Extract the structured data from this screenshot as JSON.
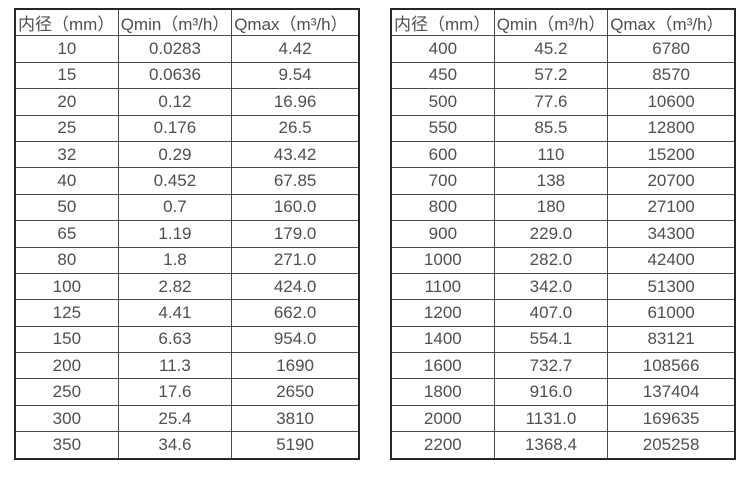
{
  "colors": {
    "background": "#ffffff",
    "border_outer": "#262626",
    "border_inner": "#4a4a4a",
    "text": "#4f4f4f"
  },
  "tables": [
    {
      "name": "flow-table-small-diameters",
      "headers": [
        "内径（mm）",
        "Qmin（m³/h）",
        "Qmax（m³/h）"
      ],
      "rows": [
        [
          "10",
          "0.0283",
          "4.42"
        ],
        [
          "15",
          "0.0636",
          "9.54"
        ],
        [
          "20",
          "0.12",
          "16.96"
        ],
        [
          "25",
          "0.176",
          "26.5"
        ],
        [
          "32",
          "0.29",
          "43.42"
        ],
        [
          "40",
          "0.452",
          "67.85"
        ],
        [
          "50",
          "0.7",
          "160.0"
        ],
        [
          "65",
          "1.19",
          "179.0"
        ],
        [
          "80",
          "1.8",
          "271.0"
        ],
        [
          "100",
          "2.82",
          "424.0"
        ],
        [
          "125",
          "4.41",
          "662.0"
        ],
        [
          "150",
          "6.63",
          "954.0"
        ],
        [
          "200",
          "11.3",
          "1690"
        ],
        [
          "250",
          "17.6",
          "2650"
        ],
        [
          "300",
          "25.4",
          "3810"
        ],
        [
          "350",
          "34.6",
          "5190"
        ]
      ]
    },
    {
      "name": "flow-table-large-diameters",
      "headers": [
        "内径（mm）",
        "Qmin（m³/h）",
        "Qmax（m³/h）"
      ],
      "rows": [
        [
          "400",
          "45.2",
          "6780"
        ],
        [
          "450",
          "57.2",
          "8570"
        ],
        [
          "500",
          "77.6",
          "10600"
        ],
        [
          "550",
          "85.5",
          "12800"
        ],
        [
          "600",
          "110",
          "15200"
        ],
        [
          "700",
          "138",
          "20700"
        ],
        [
          "800",
          "180",
          "27100"
        ],
        [
          "900",
          "229.0",
          "34300"
        ],
        [
          "1000",
          "282.0",
          "42400"
        ],
        [
          "1100",
          "342.0",
          "51300"
        ],
        [
          "1200",
          "407.0",
          "61000"
        ],
        [
          "1400",
          "554.1",
          "83121"
        ],
        [
          "1600",
          "732.7",
          "108566"
        ],
        [
          "1800",
          "916.0",
          "137404"
        ],
        [
          "2000",
          "1131.0",
          "169635"
        ],
        [
          "2200",
          "1368.4",
          "205258"
        ]
      ]
    }
  ]
}
